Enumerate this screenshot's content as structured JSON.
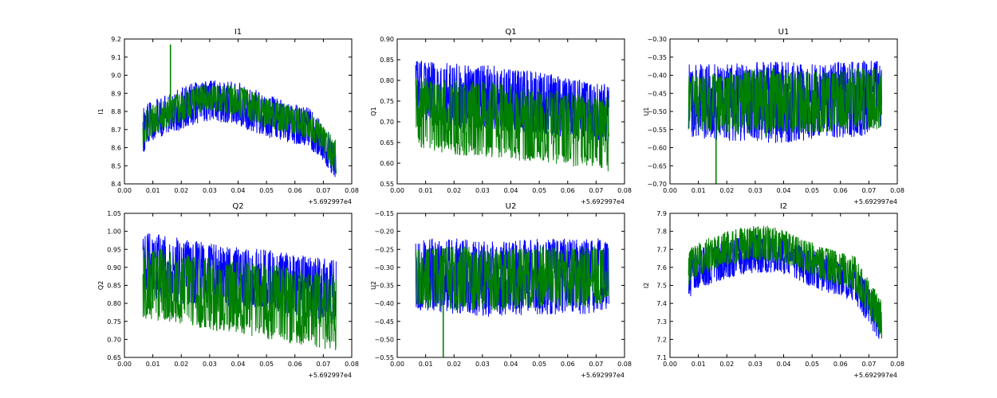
{
  "figure": {
    "background": "#ffffff",
    "series_colors": [
      "#0000ff",
      "#008000"
    ]
  },
  "chart_data": [
    {
      "type": "line",
      "title": "I1",
      "xlabel": "",
      "ylabel": "I1",
      "x_offset_label": "+5.692997e4",
      "xlim": [
        0.0,
        0.08
      ],
      "ylim": [
        8.4,
        9.2
      ],
      "xticks": [
        "0.00",
        "0.01",
        "0.02",
        "0.03",
        "0.04",
        "0.05",
        "0.06",
        "0.07",
        "0.08"
      ],
      "yticks": [
        "8.4",
        "8.5",
        "8.6",
        "8.7",
        "8.8",
        "8.9",
        "9.0",
        "9.1",
        "9.2"
      ],
      "x_range": [
        0.0065,
        0.0745
      ],
      "series": [
        {
          "color": "#0000ff",
          "x": [
            0.0065,
            0.01,
            0.015,
            0.02,
            0.025,
            0.03,
            0.035,
            0.04,
            0.045,
            0.05,
            0.055,
            0.06,
            0.065,
            0.07,
            0.0745
          ],
          "upper": [
            8.83,
            8.86,
            8.89,
            8.93,
            8.96,
            8.97,
            8.97,
            8.96,
            8.93,
            8.89,
            8.87,
            8.84,
            8.82,
            8.73,
            8.62
          ],
          "lower": [
            8.57,
            8.64,
            8.67,
            8.7,
            8.73,
            8.75,
            8.74,
            8.72,
            8.69,
            8.66,
            8.64,
            8.62,
            8.6,
            8.52,
            8.43
          ]
        },
        {
          "color": "#008000",
          "x": [
            0.0065,
            0.01,
            0.015,
            0.02,
            0.025,
            0.03,
            0.035,
            0.04,
            0.045,
            0.05,
            0.055,
            0.06,
            0.065,
            0.07,
            0.0745
          ],
          "upper": [
            8.8,
            8.84,
            8.87,
            8.91,
            8.94,
            8.95,
            8.95,
            8.94,
            8.91,
            8.87,
            8.85,
            8.82,
            8.8,
            8.72,
            8.64
          ],
          "lower": [
            8.6,
            8.67,
            8.71,
            8.74,
            8.77,
            8.8,
            8.79,
            8.77,
            8.74,
            8.71,
            8.69,
            8.67,
            8.65,
            8.57,
            8.45
          ],
          "spikes": [
            {
              "x": 0.0162,
              "y": 9.17
            }
          ]
        }
      ]
    },
    {
      "type": "line",
      "title": "Q1",
      "xlabel": "",
      "ylabel": "Q1",
      "x_offset_label": "+5.692997e4",
      "xlim": [
        0.0,
        0.08
      ],
      "ylim": [
        0.55,
        0.9
      ],
      "xticks": [
        "0.00",
        "0.01",
        "0.02",
        "0.03",
        "0.04",
        "0.05",
        "0.06",
        "0.07",
        "0.08"
      ],
      "yticks": [
        "0.55",
        "0.60",
        "0.65",
        "0.70",
        "0.75",
        "0.80",
        "0.85",
        "0.90"
      ],
      "x_range": [
        0.0065,
        0.0745
      ],
      "series": [
        {
          "color": "#0000ff",
          "x": [
            0.0065,
            0.02,
            0.035,
            0.05,
            0.065,
            0.0745
          ],
          "upper": [
            0.85,
            0.84,
            0.835,
            0.82,
            0.8,
            0.79
          ],
          "lower": [
            0.7,
            0.685,
            0.68,
            0.67,
            0.66,
            0.65
          ]
        },
        {
          "color": "#008000",
          "x": [
            0.0065,
            0.02,
            0.035,
            0.05,
            0.065,
            0.0745
          ],
          "upper": [
            0.81,
            0.8,
            0.795,
            0.78,
            0.77,
            0.76
          ],
          "lower": [
            0.64,
            0.62,
            0.615,
            0.6,
            0.59,
            0.58
          ]
        }
      ]
    },
    {
      "type": "line",
      "title": "U1",
      "xlabel": "",
      "ylabel": "U1",
      "x_offset_label": "+5.692997e4",
      "xlim": [
        0.0,
        0.08
      ],
      "ylim": [
        -0.7,
        -0.3
      ],
      "xticks": [
        "0.00",
        "0.01",
        "0.02",
        "0.03",
        "0.04",
        "0.05",
        "0.06",
        "0.07",
        "0.08"
      ],
      "yticks": [
        "−0.70",
        "−0.65",
        "−0.60",
        "−0.55",
        "−0.50",
        "−0.45",
        "−0.40",
        "−0.35",
        "−0.30"
      ],
      "x_range": [
        0.0065,
        0.0745
      ],
      "series": [
        {
          "color": "#0000ff",
          "x": [
            0.0065,
            0.02,
            0.035,
            0.05,
            0.065,
            0.0745
          ],
          "upper": [
            -0.37,
            -0.37,
            -0.36,
            -0.37,
            -0.36,
            -0.36
          ],
          "lower": [
            -0.57,
            -0.58,
            -0.59,
            -0.58,
            -0.57,
            -0.56
          ]
        },
        {
          "color": "#008000",
          "x": [
            0.0065,
            0.02,
            0.035,
            0.05,
            0.065,
            0.0745
          ],
          "upper": [
            -0.4,
            -0.39,
            -0.38,
            -0.39,
            -0.38,
            -0.38
          ],
          "lower": [
            -0.55,
            -0.56,
            -0.57,
            -0.56,
            -0.55,
            -0.55
          ],
          "spikes": [
            {
              "x": 0.0162,
              "y": -0.7
            }
          ]
        }
      ]
    },
    {
      "type": "line",
      "title": "Q2",
      "xlabel": "",
      "ylabel": "Q2",
      "x_offset_label": "+5.692997e4",
      "xlim": [
        0.0,
        0.08
      ],
      "ylim": [
        0.65,
        1.05
      ],
      "xticks": [
        "0.00",
        "0.01",
        "0.02",
        "0.03",
        "0.04",
        "0.05",
        "0.06",
        "0.07",
        "0.08"
      ],
      "yticks": [
        "0.65",
        "0.70",
        "0.75",
        "0.80",
        "0.85",
        "0.90",
        "0.95",
        "1.00",
        "1.05"
      ],
      "x_range": [
        0.0065,
        0.0745
      ],
      "series": [
        {
          "color": "#0000ff",
          "x": [
            0.0065,
            0.02,
            0.035,
            0.05,
            0.065,
            0.0745
          ],
          "upper": [
            1.0,
            0.98,
            0.96,
            0.95,
            0.93,
            0.92
          ],
          "lower": [
            0.82,
            0.8,
            0.79,
            0.78,
            0.76,
            0.75
          ]
        },
        {
          "color": "#008000",
          "x": [
            0.0065,
            0.02,
            0.035,
            0.05,
            0.065,
            0.0745
          ],
          "upper": [
            0.96,
            0.94,
            0.92,
            0.91,
            0.89,
            0.88
          ],
          "lower": [
            0.76,
            0.74,
            0.72,
            0.7,
            0.68,
            0.67
          ]
        }
      ]
    },
    {
      "type": "line",
      "title": "U2",
      "xlabel": "",
      "ylabel": "U2",
      "x_offset_label": "+5.692997e4",
      "xlim": [
        0.0,
        0.08
      ],
      "ylim": [
        -0.55,
        -0.15
      ],
      "xticks": [
        "0.00",
        "0.01",
        "0.02",
        "0.03",
        "0.04",
        "0.05",
        "0.06",
        "0.07",
        "0.08"
      ],
      "yticks": [
        "−0.55",
        "−0.50",
        "−0.45",
        "−0.40",
        "−0.35",
        "−0.30",
        "−0.25",
        "−0.20",
        "−0.15"
      ],
      "x_range": [
        0.0065,
        0.0745
      ],
      "series": [
        {
          "color": "#0000ff",
          "x": [
            0.0065,
            0.02,
            0.035,
            0.05,
            0.065,
            0.0745
          ],
          "upper": [
            -0.22,
            -0.22,
            -0.23,
            -0.22,
            -0.22,
            -0.22
          ],
          "lower": [
            -0.42,
            -0.43,
            -0.44,
            -0.43,
            -0.43,
            -0.42
          ]
        },
        {
          "color": "#008000",
          "x": [
            0.0065,
            0.02,
            0.035,
            0.05,
            0.065,
            0.0745
          ],
          "upper": [
            -0.25,
            -0.24,
            -0.25,
            -0.24,
            -0.24,
            -0.24
          ],
          "lower": [
            -0.41,
            -0.42,
            -0.42,
            -0.41,
            -0.41,
            -0.4
          ],
          "spikes": [
            {
              "x": 0.0162,
              "y": -0.55
            }
          ]
        }
      ]
    },
    {
      "type": "line",
      "title": "I2",
      "xlabel": "",
      "ylabel": "I2",
      "x_offset_label": "+5.692997e4",
      "xlim": [
        0.0,
        0.08
      ],
      "ylim": [
        7.1,
        7.9
      ],
      "xticks": [
        "0.00",
        "0.01",
        "0.02",
        "0.03",
        "0.04",
        "0.05",
        "0.06",
        "0.07",
        "0.08"
      ],
      "yticks": [
        "7.1",
        "7.2",
        "7.3",
        "7.4",
        "7.5",
        "7.6",
        "7.7",
        "7.8",
        "7.9"
      ],
      "x_range": [
        0.0065,
        0.0745
      ],
      "series": [
        {
          "color": "#0000ff",
          "x": [
            0.0065,
            0.01,
            0.015,
            0.02,
            0.025,
            0.03,
            0.035,
            0.04,
            0.045,
            0.05,
            0.055,
            0.06,
            0.065,
            0.07,
            0.0745
          ],
          "upper": [
            7.65,
            7.7,
            7.73,
            7.75,
            7.77,
            7.78,
            7.78,
            7.77,
            7.74,
            7.7,
            7.67,
            7.64,
            7.62,
            7.5,
            7.38
          ],
          "lower": [
            7.43,
            7.48,
            7.51,
            7.54,
            7.56,
            7.57,
            7.57,
            7.56,
            7.53,
            7.49,
            7.46,
            7.44,
            7.41,
            7.28,
            7.17
          ]
        },
        {
          "color": "#008000",
          "x": [
            0.0065,
            0.01,
            0.015,
            0.02,
            0.025,
            0.03,
            0.035,
            0.04,
            0.045,
            0.05,
            0.055,
            0.06,
            0.065,
            0.07,
            0.0745
          ],
          "upper": [
            7.7,
            7.74,
            7.77,
            7.8,
            7.82,
            7.83,
            7.83,
            7.81,
            7.77,
            7.74,
            7.71,
            7.68,
            7.66,
            7.53,
            7.42
          ],
          "lower": [
            7.5,
            7.55,
            7.58,
            7.61,
            7.63,
            7.64,
            7.63,
            7.62,
            7.59,
            7.55,
            7.52,
            7.5,
            7.47,
            7.33,
            7.2
          ]
        }
      ]
    }
  ]
}
